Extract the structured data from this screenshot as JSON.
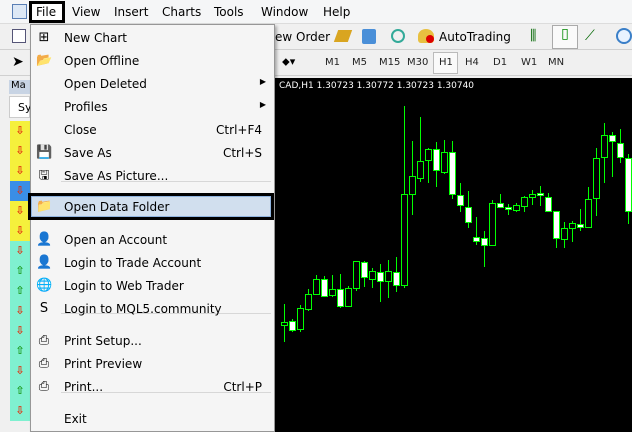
{
  "menubar": {
    "items": [
      "File",
      "View",
      "Insert",
      "Charts",
      "Tools",
      "Window",
      "Help"
    ]
  },
  "toolbar1": {
    "new_order": "ew Order",
    "autotrading": "AutoTrading"
  },
  "toolbar2": {
    "timeframes": [
      "M1",
      "M5",
      "M15",
      "M30",
      "H1",
      "H4",
      "D1",
      "W1",
      "MN"
    ],
    "selected": "H1"
  },
  "left_panel": {
    "title": "Ma",
    "column": "Sy",
    "rows": [
      "down",
      "down",
      "down",
      "down",
      "down",
      "down",
      "down",
      "up",
      "up",
      "down",
      "down",
      "up",
      "down",
      "up",
      "down"
    ]
  },
  "chart": {
    "info": "CAD,H1  1.30723 1.30772 1.30723 1.30740",
    "bull_color": "#00ff00",
    "background": "#000000"
  },
  "file_menu": {
    "items": [
      {
        "label": "New Chart",
        "icon": "new-chart-icon",
        "glyph": "⊞"
      },
      {
        "label": "Open Offline",
        "icon": "folder-open-icon",
        "glyph": "📂"
      },
      {
        "label": "Open Deleted",
        "submenu": true
      },
      {
        "label": "Profiles",
        "submenu": true
      },
      {
        "label": "Close",
        "shortcut": "Ctrl+F4"
      },
      {
        "label": "Save As",
        "shortcut": "Ctrl+S",
        "icon": "save-icon",
        "glyph": "💾"
      },
      {
        "label": "Save As Picture...",
        "icon": "save-picture-icon",
        "glyph": "🖫"
      },
      {
        "label": "Open Data Folder",
        "icon": "folder-icon",
        "glyph": "📁",
        "highlighted": true
      },
      {
        "label": "Open an Account",
        "icon": "add-account-icon",
        "glyph": "👤"
      },
      {
        "label": "Login to Trade Account",
        "icon": "login-icon",
        "glyph": "👤"
      },
      {
        "label": "Login to Web Trader",
        "icon": "web-trader-icon",
        "glyph": "🌐"
      },
      {
        "label": "Login to MQL5.community",
        "icon": "mql5-icon",
        "glyph": "S"
      },
      {
        "label": "Print Setup...",
        "icon": "print-setup-icon",
        "glyph": "⎙"
      },
      {
        "label": "Print Preview",
        "icon": "print-preview-icon",
        "glyph": "⎙"
      },
      {
        "label": "Print...",
        "shortcut": "Ctrl+P",
        "icon": "print-icon",
        "glyph": "⎙"
      },
      {
        "label": "Exit"
      }
    ]
  }
}
